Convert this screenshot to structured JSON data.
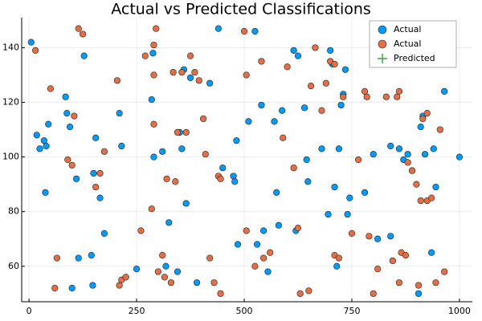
{
  "chart_data": {
    "type": "scatter",
    "title": "Actual vs Predicted Classifications",
    "xlim": [
      -17,
      1030
    ],
    "ylim": [
      47,
      151
    ],
    "xticks": [
      0,
      250,
      500,
      750,
      1000
    ],
    "yticks": [
      60,
      80,
      100,
      120,
      140
    ],
    "grid": true,
    "legend": "top-right",
    "series": [
      {
        "name": "Actual",
        "color": "#009af9",
        "x": [
          5,
          18,
          25,
          35,
          40,
          38,
          45,
          85,
          88,
          95,
          128,
          100,
          115,
          110,
          145,
          150,
          155,
          165,
          175,
          148,
          210,
          215,
          250,
          285,
          288,
          290,
          310,
          318,
          325,
          345,
          350,
          355,
          360,
          365,
          375,
          390,
          420,
          440,
          450,
          475,
          478,
          482,
          485,
          510,
          525,
          530,
          540,
          545,
          555,
          570,
          575,
          580,
          588,
          615,
          620,
          625,
          640,
          645,
          648,
          680,
          695,
          700,
          705,
          710,
          715,
          720,
          725,
          730,
          735,
          740,
          745,
          780,
          800,
          810,
          840,
          840,
          860,
          870,
          880,
          890,
          905,
          910,
          915,
          920,
          935,
          940,
          945,
          965,
          1000
        ],
        "values": [
          142,
          108,
          103,
          106,
          104,
          87,
          112,
          122,
          116,
          111,
          137,
          52,
          63,
          92,
          64,
          94,
          107,
          85,
          72,
          53,
          116,
          104,
          59,
          121,
          138,
          100,
          102,
          60,
          76,
          58,
          109,
          103,
          132,
          83,
          129,
          54,
          127,
          147,
          96,
          93,
          91,
          106,
          68,
          113,
          146,
          68,
          119,
          73,
          58,
          113,
          87,
          75,
          117,
          139,
          73,
          137,
          118,
          99,
          91,
          103,
          79,
          139,
          134,
          89,
          60,
          103,
          119,
          123,
          132,
          79,
          85,
          87,
          101,
          70,
          71,
          104,
          103,
          99,
          101,
          95,
          50,
          111,
          115,
          101,
          65,
          103,
          89,
          124,
          100
        ]
      },
      {
        "name": "Actual",
        "color": "#e26f46",
        "x": [
          15,
          50,
          60,
          65,
          90,
          100,
          105,
          115,
          125,
          155,
          165,
          175,
          210,
          215,
          225,
          205,
          260,
          270,
          285,
          290,
          290,
          295,
          290,
          300,
          310,
          315,
          320,
          330,
          335,
          340,
          345,
          355,
          365,
          375,
          385,
          395,
          405,
          410,
          420,
          430,
          440,
          445,
          445,
          500,
          505,
          505,
          525,
          540,
          545,
          560,
          590,
          600,
          615,
          625,
          630,
          650,
          655,
          665,
          680,
          690,
          700,
          710,
          710,
          720,
          730,
          750,
          765,
          780,
          785,
          790,
          800,
          810,
          830,
          845,
          855,
          860,
          860,
          865,
          875,
          880,
          890,
          900,
          905,
          910,
          915,
          925,
          925,
          935,
          945,
          955,
          965
        ],
        "values": [
          139,
          125,
          52,
          63,
          99,
          97,
          115,
          147,
          145,
          89,
          94,
          102,
          53,
          55,
          56,
          128,
          73,
          137,
          81,
          130,
          141,
          147,
          112,
          58,
          64,
          56,
          92,
          54,
          131,
          91,
          109,
          131,
          109,
          137,
          131,
          128,
          114,
          101,
          63,
          54,
          93,
          92,
          50,
          146,
          130,
          73,
          60,
          135,
          63,
          65,
          107,
          133,
          96,
          74,
          50,
          51,
          126,
          140,
          117,
          127,
          135,
          134,
          64,
          63,
          122,
          72,
          99,
          124,
          122,
          71,
          50,
          59,
          122,
          62,
          122,
          124,
          54,
          65,
          64,
          98,
          95,
          90,
          53,
          84,
          114,
          116,
          84,
          85,
          54,
          110,
          58
        ]
      },
      {
        "name": "Predicted",
        "color": "#3ea44e",
        "x": [],
        "values": []
      }
    ]
  }
}
